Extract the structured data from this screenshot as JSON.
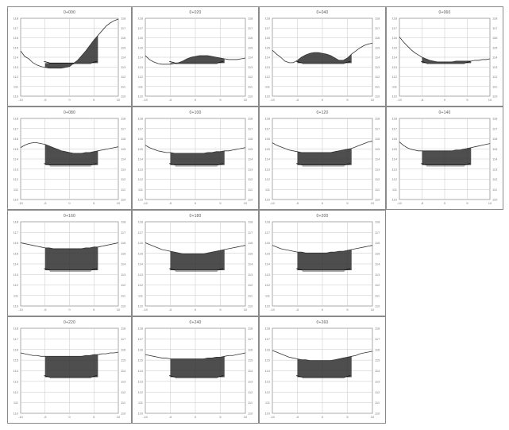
{
  "sheet": {
    "panels": [
      {
        "title": "0+000",
        "ylabels": [
          "118",
          "117",
          "116",
          "115",
          "114",
          "113",
          "112",
          "111",
          "110"
        ],
        "xlabels": [
          "-10",
          "-5",
          "0",
          "5",
          "10"
        ]
      },
      {
        "title": "0+020",
        "ylabels": [
          "118",
          "117",
          "116",
          "115",
          "114",
          "113",
          "112",
          "111",
          "110"
        ],
        "xlabels": [
          "-10",
          "-5",
          "0",
          "5",
          "10"
        ]
      },
      {
        "title": "0+040",
        "ylabels": [
          "118",
          "117",
          "116",
          "115",
          "114",
          "113",
          "112",
          "111",
          "110"
        ],
        "xlabels": [
          "-10",
          "-5",
          "0",
          "5",
          "10"
        ]
      },
      {
        "title": "0+060",
        "ylabels": [
          "118",
          "117",
          "116",
          "115",
          "114",
          "113",
          "112",
          "111",
          "110"
        ],
        "xlabels": [
          "-10",
          "-5",
          "0",
          "5",
          "10"
        ]
      },
      {
        "title": "0+080",
        "ylabels": [
          "118",
          "117",
          "116",
          "115",
          "114",
          "113",
          "112",
          "111",
          "110"
        ],
        "xlabels": [
          "-10",
          "-5",
          "0",
          "5",
          "10"
        ]
      },
      {
        "title": "0+100",
        "ylabels": [
          "118",
          "117",
          "116",
          "115",
          "114",
          "113",
          "112",
          "111",
          "110"
        ],
        "xlabels": [
          "-10",
          "-5",
          "0",
          "5",
          "10"
        ]
      },
      {
        "title": "0+120",
        "ylabels": [
          "118",
          "117",
          "116",
          "115",
          "114",
          "113",
          "112",
          "111",
          "110"
        ],
        "xlabels": [
          "-10",
          "-5",
          "0",
          "5",
          "10"
        ]
      },
      {
        "title": "0+140",
        "ylabels": [
          "118",
          "117",
          "116",
          "115",
          "114",
          "113",
          "112",
          "111",
          "110"
        ],
        "xlabels": [
          "-10",
          "-5",
          "0",
          "5",
          "10"
        ]
      },
      {
        "title": "0+160",
        "ylabels": [
          "118",
          "117",
          "116",
          "115",
          "114",
          "113",
          "112",
          "111",
          "110"
        ],
        "xlabels": [
          "-10",
          "-5",
          "0",
          "5",
          "10"
        ]
      },
      {
        "title": "0+180",
        "ylabels": [
          "118",
          "117",
          "116",
          "115",
          "114",
          "113",
          "112",
          "111",
          "110"
        ],
        "xlabels": [
          "-10",
          "-5",
          "0",
          "5",
          "10"
        ]
      },
      {
        "title": "0+200",
        "ylabels": [
          "118",
          "117",
          "116",
          "115",
          "114",
          "113",
          "112",
          "111",
          "110"
        ],
        "xlabels": [
          "-10",
          "-5",
          "0",
          "5",
          "10"
        ]
      },
      {
        "title": "0+220",
        "ylabels": [
          "118",
          "117",
          "116",
          "115",
          "114",
          "113",
          "112",
          "111",
          "110"
        ],
        "xlabels": [
          "-10",
          "-5",
          "0",
          "5",
          "10"
        ]
      },
      {
        "title": "0+240",
        "ylabels": [
          "118",
          "117",
          "116",
          "115",
          "114",
          "113",
          "112",
          "111",
          "110"
        ],
        "xlabels": [
          "-10",
          "-5",
          "0",
          "5",
          "10"
        ]
      },
      {
        "title": "0+260",
        "ylabels": [
          "118",
          "117",
          "116",
          "115",
          "114",
          "113",
          "112",
          "111",
          "110"
        ],
        "xlabels": [
          "-10",
          "-5",
          "0",
          "5",
          "10"
        ]
      }
    ]
  }
}
